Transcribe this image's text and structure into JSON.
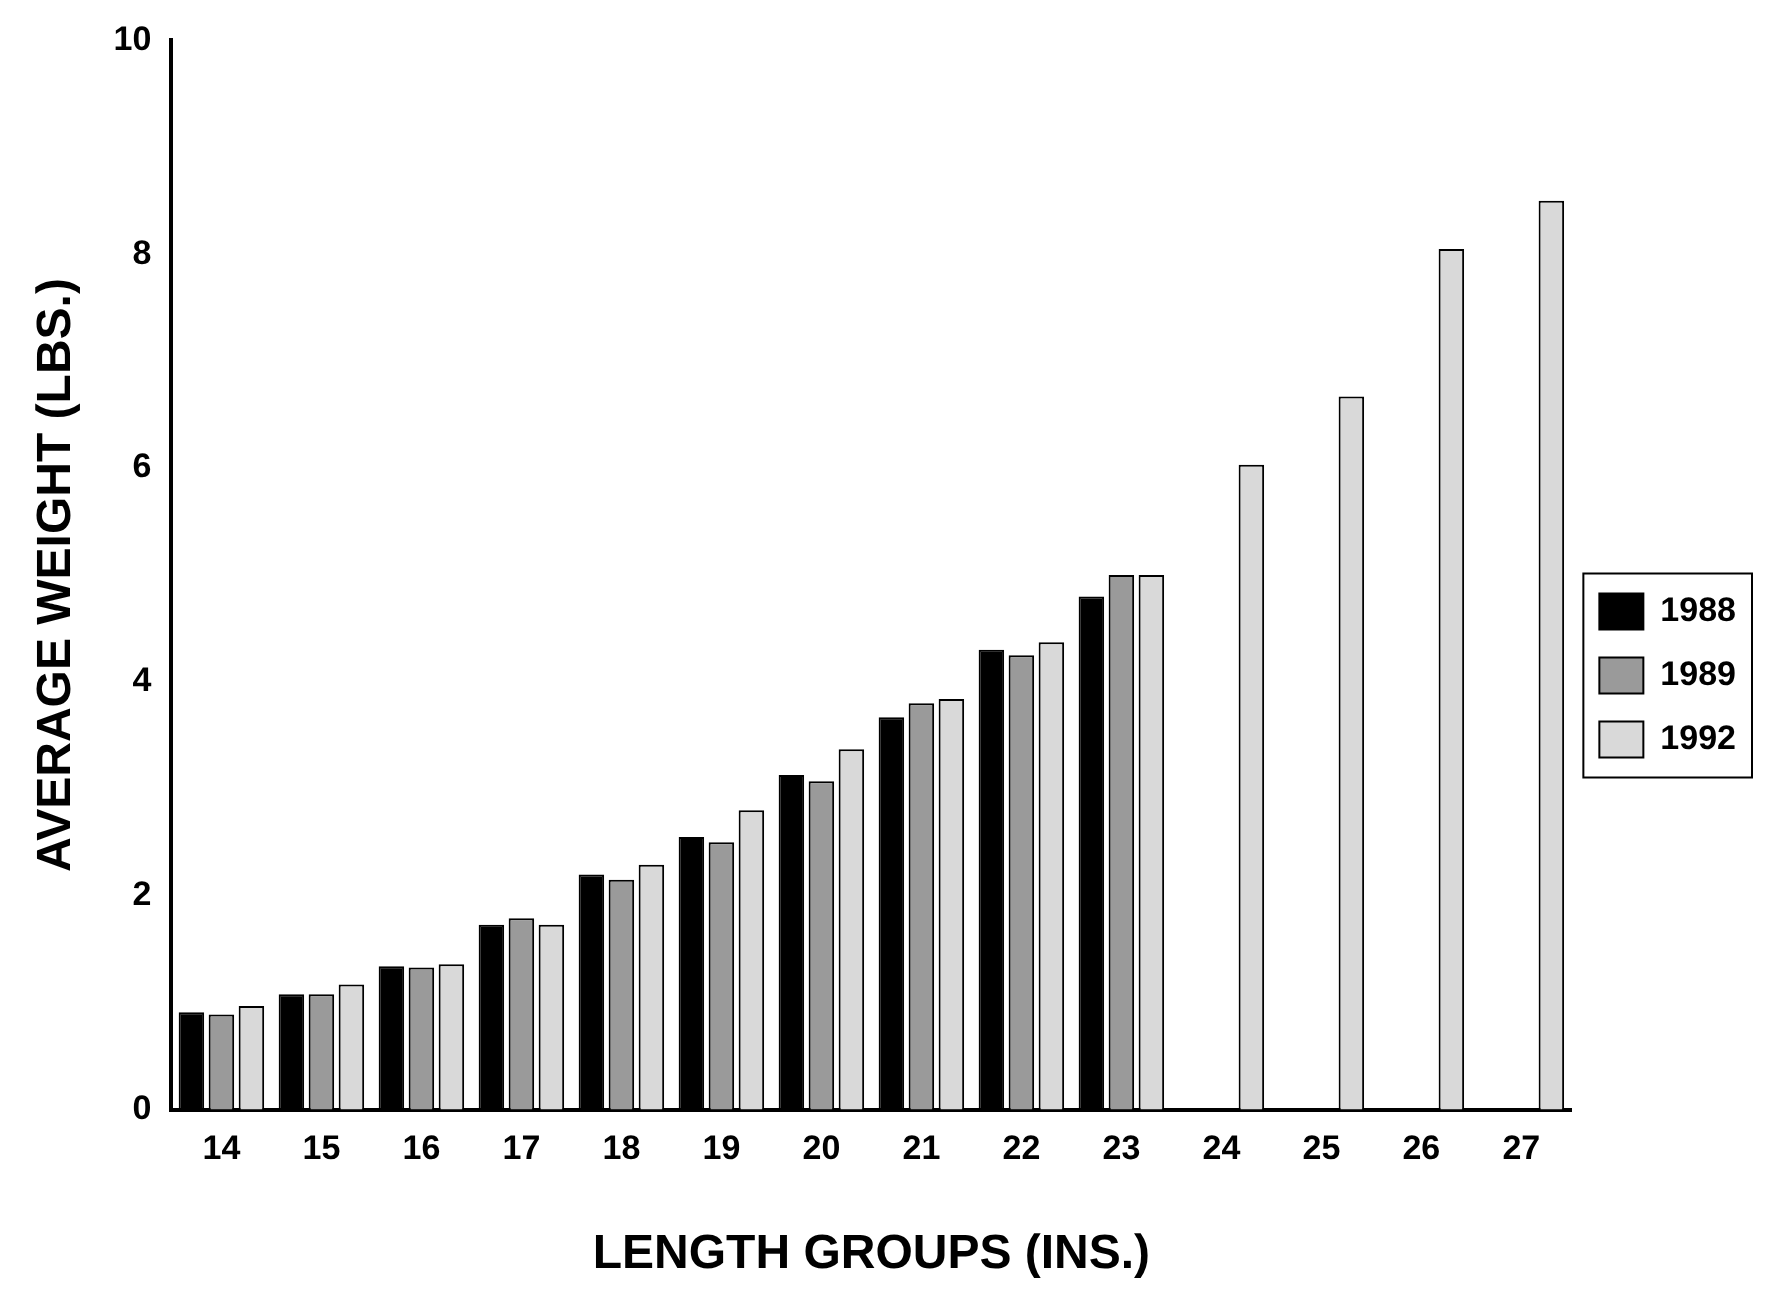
{
  "chart_data": {
    "type": "bar",
    "xlabel": "LENGTH GROUPS (INS.)",
    "ylabel": "AVERAGE WEIGHT (LBS.)",
    "categories": [
      "14",
      "15",
      "16",
      "17",
      "18",
      "19",
      "20",
      "21",
      "22",
      "23",
      "24",
      "25",
      "26",
      "27"
    ],
    "series": [
      {
        "name": "1988",
        "color": "#000000",
        "values": [
          0.91,
          1.08,
          1.34,
          1.73,
          2.2,
          2.55,
          3.13,
          3.67,
          4.3,
          4.8,
          null,
          null,
          null,
          null
        ]
      },
      {
        "name": "1989",
        "color": "#9a9a9a",
        "values": [
          0.89,
          1.08,
          1.33,
          1.79,
          2.15,
          2.5,
          3.07,
          3.8,
          4.25,
          5.0,
          null,
          null,
          null,
          null
        ]
      },
      {
        "name": "1992",
        "color": "#d9d9d9",
        "values": [
          0.97,
          1.17,
          1.36,
          1.73,
          2.29,
          2.8,
          3.37,
          3.84,
          4.37,
          5.0,
          6.03,
          6.67,
          8.05,
          8.5
        ]
      }
    ],
    "ylim": [
      0,
      10
    ],
    "yticks": [
      0,
      2,
      4,
      6,
      8,
      10
    ],
    "grid": false,
    "legend": "right"
  }
}
